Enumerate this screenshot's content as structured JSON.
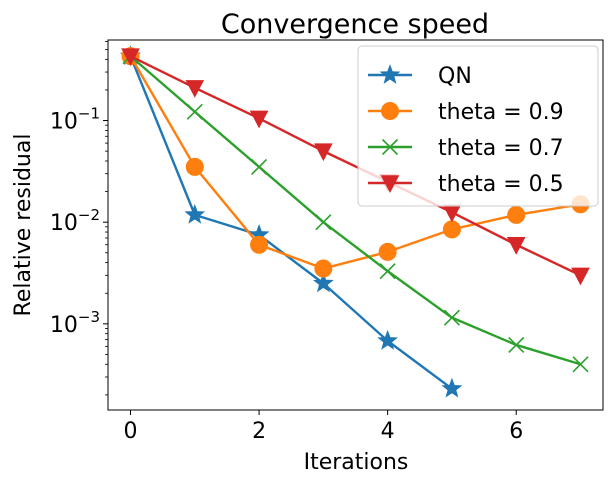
{
  "chart_data": {
    "type": "line",
    "title": "Convergence speed",
    "xlabel": "Iterations",
    "ylabel": "Relative residual",
    "yscale": "log",
    "xlim": [
      -0.35,
      7.35
    ],
    "ylim": [
      0.000142,
      0.62
    ],
    "xticks": [
      0,
      2,
      4,
      6
    ],
    "xtick_labels": [
      "0",
      "2",
      "4",
      "6"
    ],
    "yticks": [
      0.1,
      0.01,
      0.001
    ],
    "ytick_labels": [
      {
        "base": "10",
        "exp": "−1"
      },
      {
        "base": "10",
        "exp": "−2"
      },
      {
        "base": "10",
        "exp": "−3"
      }
    ],
    "legend_position": "top-right",
    "grid": false,
    "series": [
      {
        "name": "QN",
        "color": "#1f77b4",
        "marker": "star",
        "x": [
          0,
          1,
          2,
          3,
          4,
          5
        ],
        "y": [
          0.43,
          0.0118,
          0.0075,
          0.0025,
          0.00068,
          0.00023
        ]
      },
      {
        "name": "theta = 0.9",
        "color": "#ff7f0e",
        "marker": "circle",
        "x": [
          0,
          1,
          2,
          3,
          4,
          5,
          6,
          7
        ],
        "y": [
          0.43,
          0.035,
          0.006,
          0.0035,
          0.0051,
          0.0085,
          0.0118,
          0.015
        ]
      },
      {
        "name": "theta = 0.7",
        "color": "#2ca02c",
        "marker": "x",
        "x": [
          0,
          1,
          2,
          3,
          4,
          5,
          6,
          7
        ],
        "y": [
          0.43,
          0.122,
          0.035,
          0.01,
          0.0033,
          0.00115,
          0.00062,
          0.0004
        ]
      },
      {
        "name": "theta = 0.5",
        "color": "#d62728",
        "marker": "triangle-down",
        "x": [
          0,
          1,
          2,
          3,
          4,
          5,
          6,
          7
        ],
        "y": [
          0.43,
          0.21,
          0.105,
          0.05,
          0.025,
          0.0125,
          0.006,
          0.003
        ]
      }
    ]
  }
}
